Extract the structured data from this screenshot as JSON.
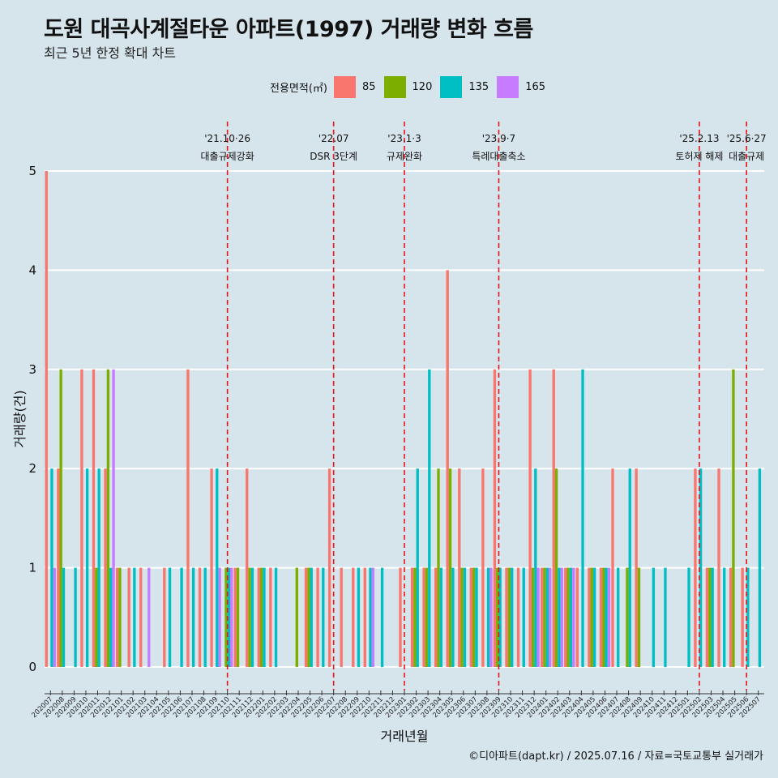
{
  "header": {
    "title": "도원 대곡사계절타운 아파트(1997) 거래량 변화 흐름",
    "subtitle": "최근 5년 한정 확대 차트"
  },
  "legend": {
    "title": "전용면적(㎡)",
    "items": [
      {
        "label": "85",
        "color": "#f8766d"
      },
      {
        "label": "120",
        "color": "#7cae00"
      },
      {
        "label": "135",
        "color": "#00bfc4"
      },
      {
        "label": "165",
        "color": "#c77cff"
      }
    ]
  },
  "caption": "©디아파트(dapt.kr) / 2025.07.16 / 자료=국토교통부 실거래가",
  "chart_data": {
    "type": "bar",
    "xlabel": "거래년월",
    "ylabel": "거래량(건)",
    "ylim": [
      0,
      5
    ],
    "yticks": [
      0,
      1,
      2,
      3,
      4,
      5
    ],
    "grid": true,
    "legend_position": "top",
    "categories": [
      "202007",
      "202008",
      "202009",
      "202010",
      "202011",
      "202012",
      "202101",
      "202102",
      "202103",
      "202104",
      "202105",
      "202106",
      "202107",
      "202108",
      "202109",
      "202110",
      "202111",
      "202112",
      "202201",
      "202202",
      "202203",
      "202204",
      "202205",
      "202206",
      "202207",
      "202208",
      "202209",
      "202210",
      "202211",
      "202212",
      "202301",
      "202302",
      "202303",
      "202304",
      "202305",
      "202306",
      "202307",
      "202308",
      "202309",
      "202310",
      "202311",
      "202312",
      "202401",
      "202402",
      "202403",
      "202404",
      "202405",
      "202406",
      "202407",
      "202408",
      "202409",
      "202410",
      "202411",
      "202412",
      "202501",
      "202502",
      "202503",
      "202504",
      "202505",
      "202506",
      "202507"
    ],
    "series": [
      {
        "name": "85",
        "color": "#f8766d",
        "values": [
          5,
          2,
          0,
          3,
          3,
          2,
          1,
          1,
          1,
          0,
          1,
          0,
          3,
          1,
          2,
          0,
          1,
          2,
          1,
          1,
          0,
          0,
          1,
          1,
          2,
          1,
          1,
          1,
          0,
          0,
          1,
          1,
          1,
          1,
          4,
          2,
          1,
          2,
          3,
          1,
          1,
          3,
          1,
          3,
          1,
          1,
          1,
          1,
          2,
          0,
          2,
          0,
          0,
          0,
          0,
          2,
          1,
          2,
          1,
          1,
          0
        ]
      },
      {
        "name": "120",
        "color": "#7cae00",
        "values": [
          0,
          3,
          0,
          0,
          1,
          3,
          1,
          0,
          0,
          0,
          0,
          0,
          0,
          0,
          0,
          1,
          1,
          1,
          1,
          0,
          0,
          1,
          1,
          0,
          0,
          0,
          0,
          0,
          0,
          0,
          0,
          1,
          1,
          2,
          2,
          1,
          1,
          0,
          1,
          1,
          0,
          1,
          1,
          2,
          1,
          0,
          1,
          1,
          0,
          1,
          1,
          0,
          0,
          0,
          0,
          0,
          1,
          0,
          3,
          0,
          0
        ]
      },
      {
        "name": "135",
        "color": "#00bfc4",
        "values": [
          2,
          1,
          1,
          2,
          2,
          1,
          0,
          1,
          0,
          0,
          1,
          1,
          1,
          1,
          2,
          1,
          0,
          1,
          1,
          1,
          0,
          0,
          1,
          1,
          0,
          0,
          1,
          1,
          1,
          0,
          0,
          2,
          3,
          1,
          1,
          1,
          1,
          1,
          1,
          1,
          1,
          2,
          1,
          1,
          1,
          3,
          1,
          1,
          1,
          2,
          0,
          1,
          1,
          0,
          1,
          2,
          1,
          1,
          0,
          1,
          2
        ]
      },
      {
        "name": "165",
        "color": "#c77cff",
        "values": [
          1,
          0,
          0,
          0,
          0,
          3,
          0,
          0,
          1,
          0,
          0,
          0,
          0,
          0,
          1,
          1,
          0,
          0,
          0,
          0,
          0,
          0,
          0,
          0,
          0,
          0,
          0,
          1,
          0,
          0,
          0,
          0,
          0,
          0,
          0,
          0,
          0,
          1,
          0,
          0,
          0,
          1,
          1,
          1,
          1,
          0,
          0,
          1,
          0,
          0,
          0,
          0,
          0,
          0,
          0,
          0,
          0,
          0,
          0,
          0,
          0
        ]
      }
    ],
    "annotations": [
      {
        "month": "202110",
        "date": "'21.10·26",
        "label": "대출규제강화"
      },
      {
        "month": "202207",
        "date": "'22.07",
        "label": "DSR 3단계"
      },
      {
        "month": "202301",
        "date": "'23.1·3",
        "label": "규제완화"
      },
      {
        "month": "202309",
        "date": "'23.9·7",
        "label": "특례대출축소"
      },
      {
        "month": "202502",
        "date": "'25.2.13",
        "label": "토허제 해제"
      },
      {
        "month": "202506",
        "date": "'25.6·27",
        "label": "대출규제"
      }
    ]
  }
}
